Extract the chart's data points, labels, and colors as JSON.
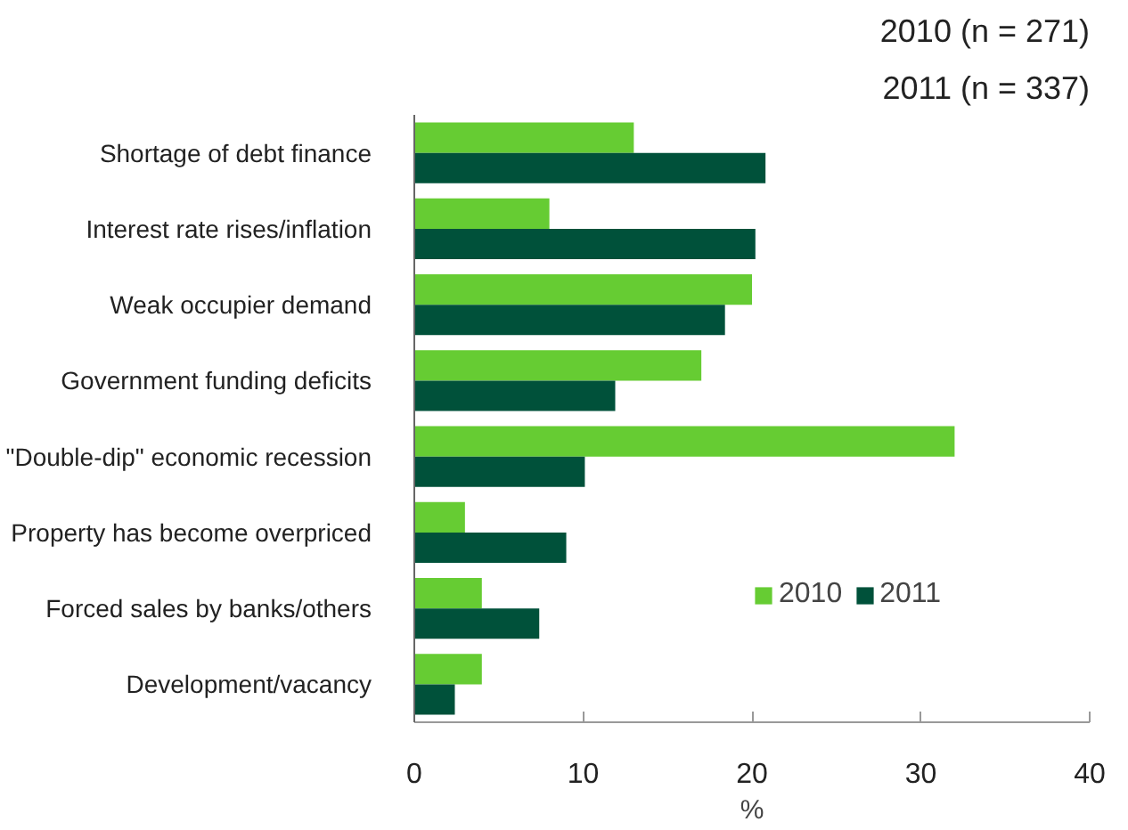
{
  "chart_data": {
    "type": "bar",
    "orientation": "horizontal",
    "xlabel": "%",
    "annotations": [
      "2010 (n = 271)",
      "2011 (n = 337)"
    ],
    "categories": [
      "Shortage of debt finance",
      "Interest rate rises/inflation",
      "Weak occupier demand",
      "Government funding deficits",
      "\"Double-dip\" economic recession",
      "Property has become overpriced",
      "Forced sales by banks/others",
      "Development/vacancy"
    ],
    "series": [
      {
        "name": "2010",
        "color": "#66cc33",
        "values": [
          13.0,
          8.0,
          20.0,
          17.0,
          32.0,
          3.0,
          4.0,
          4.0
        ]
      },
      {
        "name": "2011",
        "color": "#00513a",
        "values": [
          20.8,
          20.2,
          18.4,
          11.9,
          10.1,
          9.0,
          7.4,
          2.4
        ]
      }
    ],
    "xlim": [
      0,
      40
    ],
    "xticks": [
      0,
      10,
      20,
      30,
      40
    ],
    "grid": false,
    "legend": "right"
  }
}
